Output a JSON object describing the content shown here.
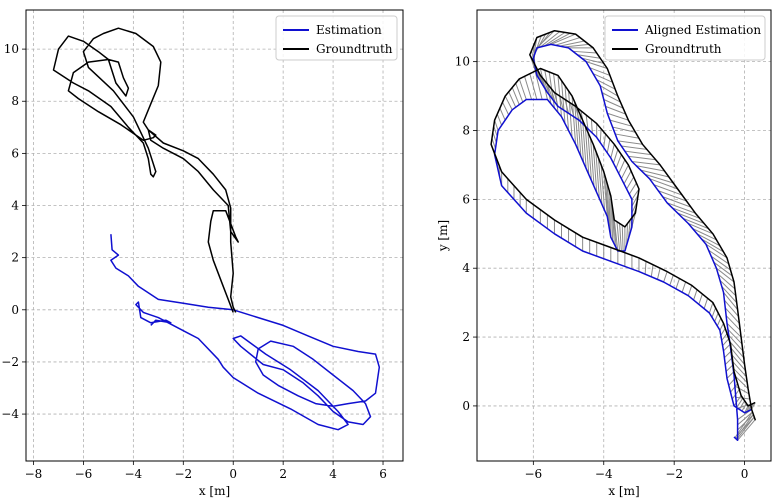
{
  "colors": {
    "estimation": "#1010d0",
    "groundtruth": "#000000",
    "correspondence": "#8a8a8a"
  },
  "chart_data": [
    {
      "type": "line",
      "xlabel": "x [m]",
      "ylabel": "",
      "xlim": [
        -8.3,
        6.8
      ],
      "ylim": [
        -5.8,
        11.5
      ],
      "xticks": [
        -8,
        -6,
        -4,
        -2,
        0,
        2,
        4,
        6
      ],
      "yticks": [
        -4,
        -2,
        0,
        2,
        4,
        6,
        8,
        10
      ],
      "grid": true,
      "legend": "top-right",
      "series": [
        {
          "name": "Estimation",
          "color": "#1010d0",
          "points": [
            [
              -4.9,
              2.9
            ],
            [
              -4.85,
              2.3
            ],
            [
              -4.6,
              2.1
            ],
            [
              -4.9,
              1.9
            ],
            [
              -4.7,
              1.6
            ],
            [
              -4.2,
              1.3
            ],
            [
              -3.8,
              0.9
            ],
            [
              -3.0,
              0.4
            ],
            [
              -2.0,
              0.25
            ],
            [
              -1.0,
              0.1
            ],
            [
              0.0,
              0.0
            ],
            [
              1.0,
              -0.3
            ],
            [
              2.0,
              -0.6
            ],
            [
              3.0,
              -1.0
            ],
            [
              4.0,
              -1.4
            ],
            [
              5.0,
              -1.6
            ],
            [
              5.7,
              -1.7
            ],
            [
              5.85,
              -2.2
            ],
            [
              5.7,
              -3.2
            ],
            [
              5.3,
              -3.5
            ],
            [
              4.6,
              -3.6
            ],
            [
              4.0,
              -3.7
            ],
            [
              3.3,
              -3.6
            ],
            [
              2.6,
              -3.3
            ],
            [
              1.8,
              -2.9
            ],
            [
              1.2,
              -2.5
            ],
            [
              0.9,
              -2.0
            ],
            [
              1.0,
              -1.5
            ],
            [
              1.5,
              -1.2
            ],
            [
              2.4,
              -1.4
            ],
            [
              3.2,
              -1.9
            ],
            [
              4.0,
              -2.5
            ],
            [
              4.8,
              -3.1
            ],
            [
              5.3,
              -3.6
            ],
            [
              5.5,
              -4.1
            ],
            [
              5.2,
              -4.4
            ],
            [
              4.6,
              -4.3
            ],
            [
              4.0,
              -3.9
            ],
            [
              3.4,
              -3.3
            ],
            [
              2.8,
              -2.8
            ],
            [
              2.0,
              -2.3
            ],
            [
              1.2,
              -2.1
            ],
            [
              0.3,
              -1.4
            ],
            [
              0.0,
              -1.1
            ],
            [
              0.3,
              -1.0
            ],
            [
              1.3,
              -1.7
            ],
            [
              2.3,
              -2.3
            ],
            [
              3.4,
              -3.1
            ],
            [
              4.2,
              -3.9
            ],
            [
              4.6,
              -4.4
            ],
            [
              4.2,
              -4.6
            ],
            [
              3.4,
              -4.4
            ],
            [
              2.3,
              -3.8
            ],
            [
              1.0,
              -3.2
            ],
            [
              0.0,
              -2.6
            ],
            [
              -0.4,
              -2.2
            ],
            [
              -0.6,
              -1.9
            ],
            [
              -0.7,
              -1.8
            ],
            [
              -1.4,
              -1.1
            ],
            [
              -1.8,
              -0.9
            ],
            [
              -2.4,
              -0.6
            ],
            [
              -3.0,
              -0.3
            ],
            [
              -3.6,
              -0.1
            ],
            [
              -3.9,
              0.2
            ],
            [
              -3.8,
              0.3
            ],
            [
              -3.7,
              -0.3
            ],
            [
              -3.3,
              -0.5
            ],
            [
              -2.7,
              -0.4
            ],
            [
              -2.5,
              -0.5
            ],
            [
              -3.1,
              -0.4
            ],
            [
              -3.3,
              -0.6
            ]
          ]
        },
        {
          "name": "Groundtruth",
          "color": "#000000",
          "points": [
            [
              0.0,
              -0.1
            ],
            [
              -0.4,
              0.9
            ],
            [
              -0.8,
              1.9
            ],
            [
              -1.0,
              2.6
            ],
            [
              -0.9,
              3.4
            ],
            [
              -0.8,
              3.8
            ],
            [
              -0.3,
              3.8
            ],
            [
              0.1,
              2.8
            ],
            [
              0.2,
              2.6
            ],
            [
              -0.1,
              3.0
            ],
            [
              -0.2,
              4.0
            ],
            [
              -0.8,
              4.6
            ],
            [
              -1.4,
              5.3
            ],
            [
              -2.0,
              5.8
            ],
            [
              -2.8,
              6.2
            ],
            [
              -3.3,
              6.5
            ],
            [
              -3.4,
              6.9
            ],
            [
              -3.1,
              6.7
            ],
            [
              -3.2,
              6.6
            ],
            [
              -3.6,
              6.5
            ],
            [
              -4.5,
              7.1
            ],
            [
              -5.4,
              7.6
            ],
            [
              -6.2,
              8.1
            ],
            [
              -6.6,
              8.4
            ],
            [
              -6.4,
              9.1
            ],
            [
              -5.8,
              9.5
            ],
            [
              -5.0,
              9.6
            ],
            [
              -4.6,
              9.5
            ],
            [
              -4.4,
              8.9
            ],
            [
              -4.2,
              8.5
            ],
            [
              -4.3,
              8.2
            ],
            [
              -4.7,
              8.7
            ],
            [
              -5.0,
              9.6
            ],
            [
              -5.4,
              9.9
            ],
            [
              -6.0,
              10.3
            ],
            [
              -6.6,
              10.5
            ],
            [
              -7.0,
              10.0
            ],
            [
              -7.2,
              9.2
            ],
            [
              -6.4,
              8.7
            ],
            [
              -5.8,
              8.4
            ],
            [
              -4.9,
              7.8
            ],
            [
              -4.2,
              7.0
            ],
            [
              -3.6,
              6.4
            ],
            [
              -3.4,
              5.8
            ],
            [
              -3.3,
              5.2
            ],
            [
              -3.2,
              5.1
            ],
            [
              -3.1,
              5.3
            ],
            [
              -3.4,
              6.2
            ],
            [
              -4.0,
              7.4
            ],
            [
              -4.8,
              8.4
            ],
            [
              -5.8,
              9.3
            ],
            [
              -6.0,
              9.9
            ],
            [
              -5.6,
              10.4
            ],
            [
              -5.2,
              10.6
            ],
            [
              -4.6,
              10.8
            ],
            [
              -3.9,
              10.6
            ],
            [
              -3.2,
              10.1
            ],
            [
              -2.9,
              9.5
            ],
            [
              -3.0,
              8.6
            ],
            [
              -3.3,
              7.9
            ],
            [
              -3.6,
              7.2
            ],
            [
              -3.4,
              6.9
            ],
            [
              -2.8,
              6.4
            ],
            [
              -2.0,
              6.1
            ],
            [
              -1.4,
              5.8
            ],
            [
              -0.8,
              5.2
            ],
            [
              -0.3,
              4.6
            ],
            [
              -0.1,
              3.9
            ],
            [
              -0.1,
              2.6
            ],
            [
              0.0,
              1.4
            ],
            [
              -0.1,
              0.5
            ],
            [
              0.0,
              0.1
            ],
            [
              0.1,
              -0.1
            ]
          ]
        }
      ]
    },
    {
      "type": "line",
      "xlabel": "x [m]",
      "ylabel": "y [m]",
      "xlim": [
        -7.6,
        0.75
      ],
      "ylim": [
        -1.6,
        11.5
      ],
      "xticks": [
        -6,
        -4,
        -2,
        0
      ],
      "yticks": [
        0,
        2,
        4,
        6,
        8,
        10
      ],
      "grid": true,
      "legend": "top-right",
      "series": [
        {
          "name": "Aligned Estimation",
          "color": "#1010d0",
          "points": [
            [
              0.2,
              -0.1
            ],
            [
              0.0,
              -0.2
            ],
            [
              -0.3,
              0.0
            ],
            [
              -0.5,
              0.8
            ],
            [
              -0.6,
              1.6
            ],
            [
              -0.7,
              2.2
            ],
            [
              -1.0,
              2.7
            ],
            [
              -1.6,
              3.2
            ],
            [
              -2.3,
              3.6
            ],
            [
              -3.0,
              3.9
            ],
            [
              -3.8,
              4.2
            ],
            [
              -4.6,
              4.5
            ],
            [
              -5.4,
              5.0
            ],
            [
              -6.2,
              5.6
            ],
            [
              -6.9,
              6.4
            ],
            [
              -7.1,
              7.3
            ],
            [
              -7.0,
              8.0
            ],
            [
              -6.6,
              8.6
            ],
            [
              -6.2,
              8.9
            ],
            [
              -5.6,
              8.9
            ],
            [
              -5.2,
              8.4
            ],
            [
              -4.8,
              7.6
            ],
            [
              -4.5,
              6.9
            ],
            [
              -4.2,
              6.2
            ],
            [
              -3.9,
              5.5
            ],
            [
              -3.8,
              4.9
            ],
            [
              -3.6,
              4.5
            ],
            [
              -3.4,
              4.5
            ],
            [
              -3.2,
              5.2
            ],
            [
              -3.2,
              6.0
            ],
            [
              -3.5,
              6.6
            ],
            [
              -3.8,
              7.2
            ],
            [
              -4.2,
              7.8
            ],
            [
              -4.7,
              8.3
            ],
            [
              -5.3,
              8.7
            ],
            [
              -5.6,
              9.1
            ],
            [
              -5.9,
              9.6
            ],
            [
              -6.0,
              10.1
            ],
            [
              -5.9,
              10.4
            ],
            [
              -5.5,
              10.5
            ],
            [
              -5.0,
              10.4
            ],
            [
              -4.5,
              10.0
            ],
            [
              -4.1,
              9.3
            ],
            [
              -3.9,
              8.5
            ],
            [
              -3.6,
              7.7
            ],
            [
              -3.2,
              7.1
            ],
            [
              -2.7,
              6.6
            ],
            [
              -2.2,
              5.9
            ],
            [
              -1.6,
              5.3
            ],
            [
              -1.1,
              4.7
            ],
            [
              -0.8,
              4.0
            ],
            [
              -0.6,
              3.3
            ],
            [
              -0.5,
              2.4
            ],
            [
              -0.4,
              1.7
            ],
            [
              -0.3,
              0.9
            ],
            [
              -0.2,
              -0.4
            ],
            [
              -0.2,
              -1.0
            ],
            [
              -0.3,
              -0.9
            ]
          ]
        },
        {
          "name": "Groundtruth",
          "color": "#000000",
          "points": [
            [
              0.3,
              0.1
            ],
            [
              0.1,
              0.0
            ],
            [
              -0.1,
              0.3
            ],
            [
              -0.3,
              1.0
            ],
            [
              -0.4,
              1.8
            ],
            [
              -0.6,
              2.4
            ],
            [
              -0.9,
              3.0
            ],
            [
              -1.5,
              3.5
            ],
            [
              -2.2,
              3.9
            ],
            [
              -3.0,
              4.3
            ],
            [
              -3.8,
              4.6
            ],
            [
              -4.6,
              4.9
            ],
            [
              -5.4,
              5.4
            ],
            [
              -6.2,
              6.0
            ],
            [
              -6.9,
              6.8
            ],
            [
              -7.2,
              7.6
            ],
            [
              -7.1,
              8.3
            ],
            [
              -6.8,
              9.0
            ],
            [
              -6.4,
              9.5
            ],
            [
              -5.8,
              9.8
            ],
            [
              -5.3,
              9.6
            ],
            [
              -4.9,
              9.0
            ],
            [
              -4.6,
              8.3
            ],
            [
              -4.3,
              7.6
            ],
            [
              -4.0,
              6.8
            ],
            [
              -3.8,
              6.1
            ],
            [
              -3.7,
              5.4
            ],
            [
              -3.4,
              5.2
            ],
            [
              -3.1,
              5.6
            ],
            [
              -3.0,
              6.3
            ],
            [
              -3.3,
              7.0
            ],
            [
              -3.7,
              7.6
            ],
            [
              -4.2,
              8.2
            ],
            [
              -4.8,
              8.7
            ],
            [
              -5.4,
              9.1
            ],
            [
              -5.8,
              9.6
            ],
            [
              -6.1,
              10.2
            ],
            [
              -5.9,
              10.7
            ],
            [
              -5.4,
              10.9
            ],
            [
              -4.8,
              10.8
            ],
            [
              -4.3,
              10.4
            ],
            [
              -3.9,
              9.8
            ],
            [
              -3.6,
              9.0
            ],
            [
              -3.3,
              8.3
            ],
            [
              -2.9,
              7.6
            ],
            [
              -2.4,
              7.0
            ],
            [
              -1.9,
              6.3
            ],
            [
              -1.4,
              5.6
            ],
            [
              -0.9,
              5.0
            ],
            [
              -0.5,
              4.3
            ],
            [
              -0.3,
              3.6
            ],
            [
              -0.2,
              2.8
            ],
            [
              -0.1,
              2.0
            ],
            [
              0.0,
              1.2
            ],
            [
              0.1,
              0.5
            ],
            [
              0.2,
              -0.1
            ],
            [
              0.3,
              -0.4
            ],
            [
              0.2,
              -0.1
            ]
          ]
        }
      ]
    }
  ]
}
